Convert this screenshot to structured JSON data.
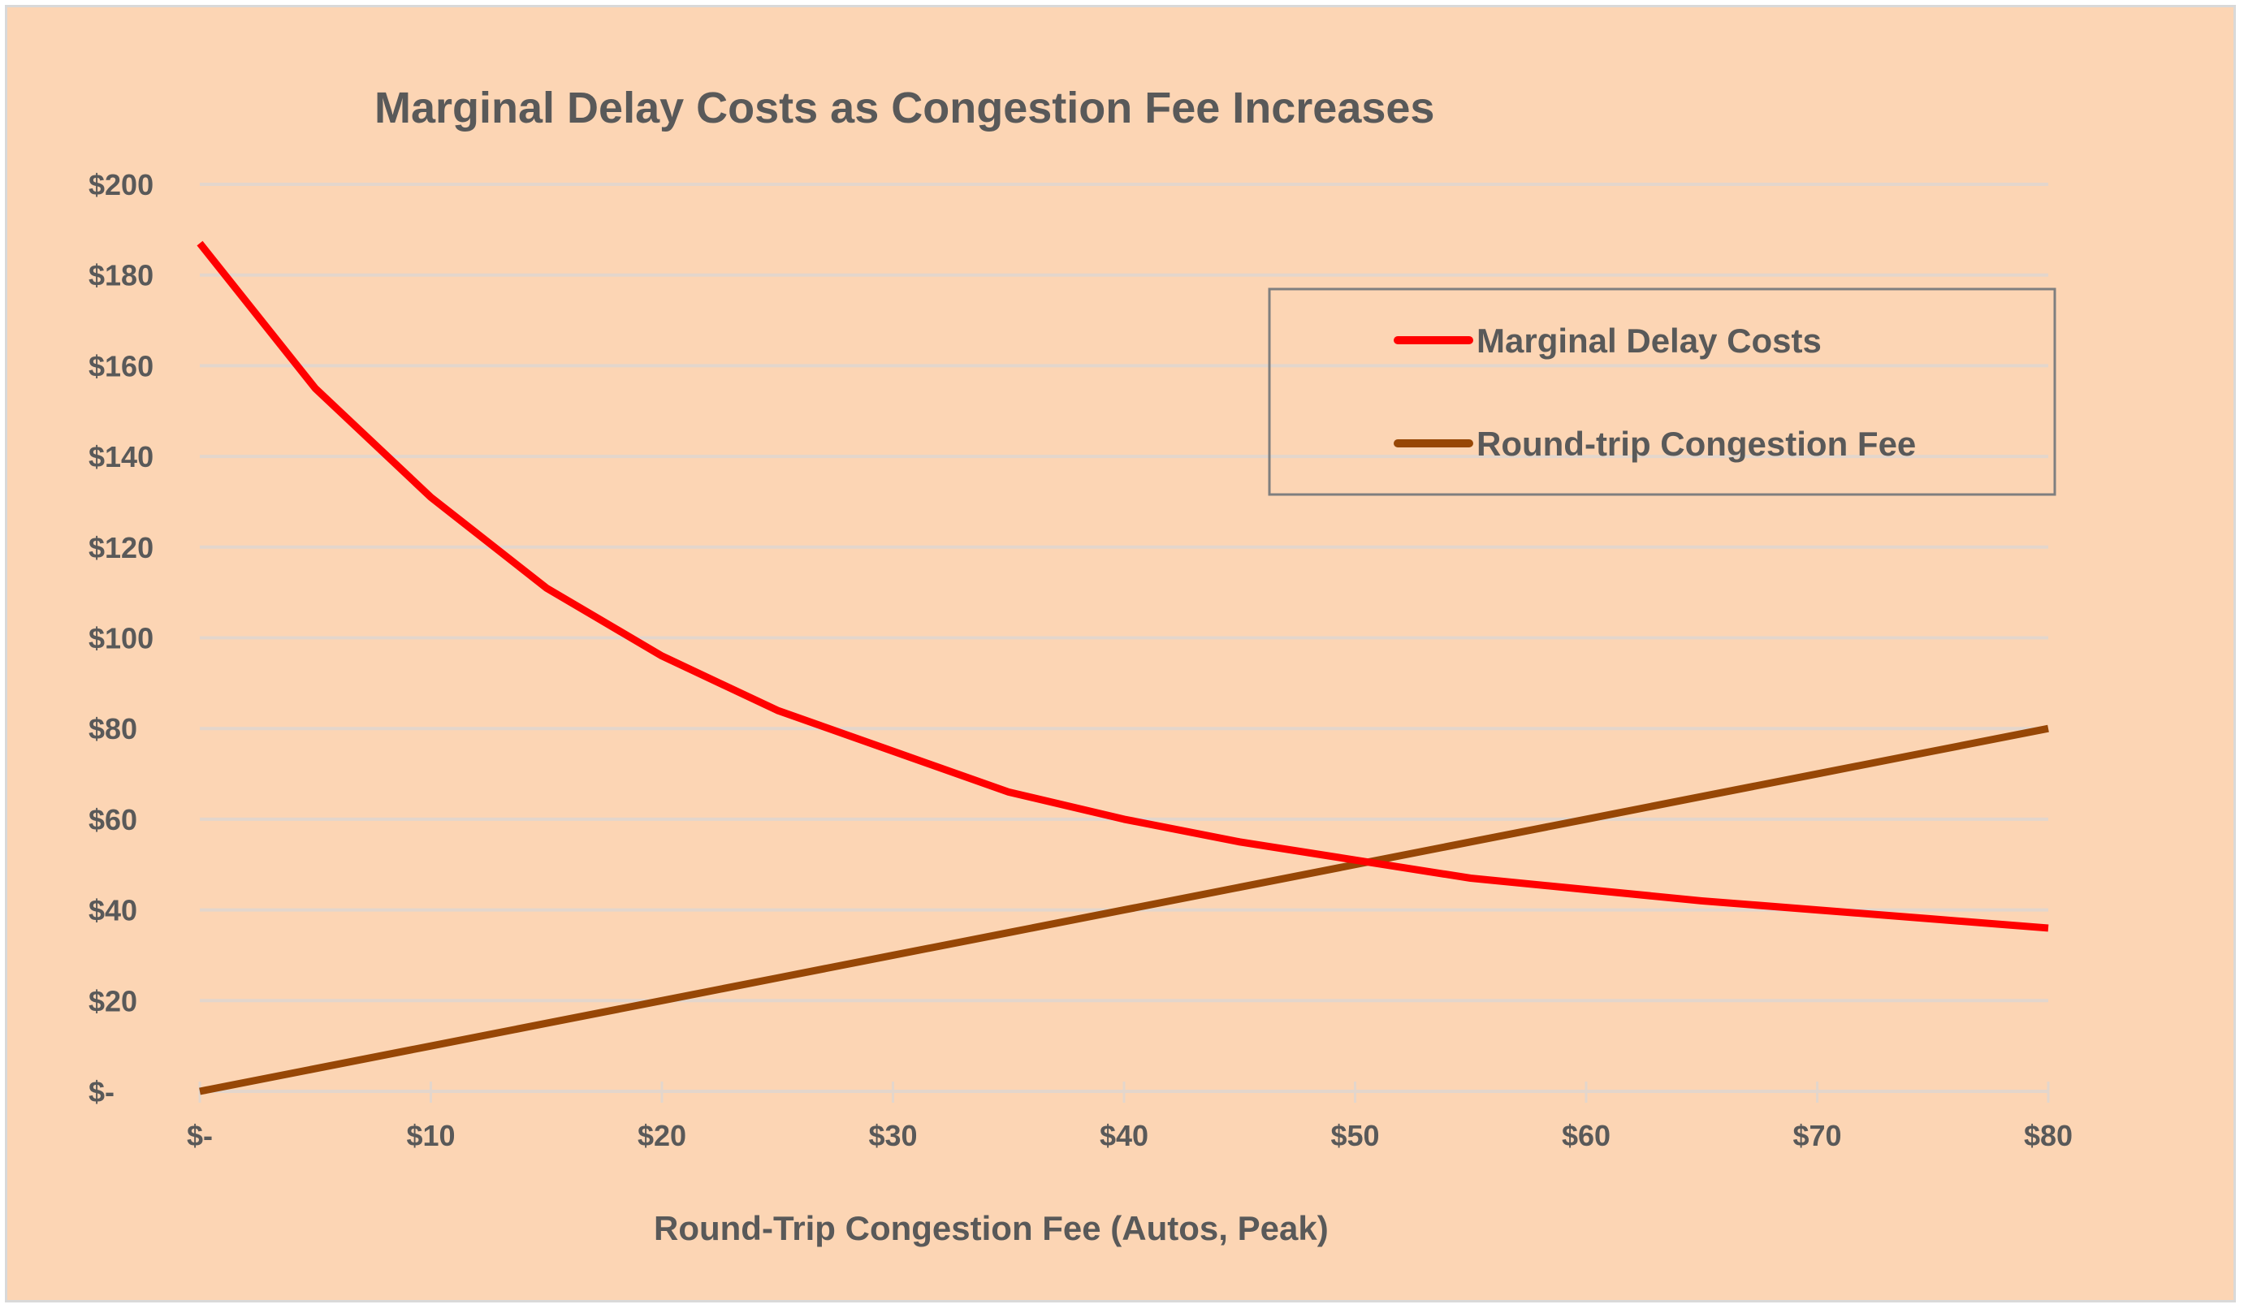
{
  "chart_data": {
    "type": "line",
    "title": "Marginal Delay Costs as Congestion Fee Increases",
    "xlabel": "Round-Trip Congestion Fee (Autos, Peak)",
    "ylabel": "",
    "x": [
      0,
      5,
      10,
      15,
      20,
      25,
      30,
      35,
      40,
      45,
      50,
      55,
      60,
      65,
      70,
      75,
      80
    ],
    "xlim": [
      0,
      80
    ],
    "ylim": [
      0,
      200
    ],
    "x_ticks": [
      0,
      10,
      20,
      30,
      40,
      50,
      60,
      70,
      80
    ],
    "x_tick_labels": [
      "$-",
      "$10",
      "$20",
      "$30",
      "$40",
      "$50",
      "$60",
      "$70",
      "$80"
    ],
    "y_ticks": [
      0,
      20,
      40,
      60,
      80,
      100,
      120,
      140,
      160,
      180,
      200
    ],
    "y_tick_labels": [
      "$-",
      "$20",
      "$40",
      "$60",
      "$80",
      "$100",
      "$120",
      "$140",
      "$160",
      "$180",
      "$200"
    ],
    "grid": "horizontal",
    "legend_position": "top-right",
    "series": [
      {
        "name": "Marginal Delay Costs",
        "color": "#ff0000",
        "values": [
          187,
          155,
          131,
          111,
          96,
          84,
          75,
          66,
          60,
          55,
          51,
          47,
          44.5,
          42,
          40,
          38,
          36
        ]
      },
      {
        "name": "Round-trip Congestion Fee",
        "color": "#974706",
        "values": [
          0,
          5,
          10,
          15,
          20,
          25,
          30,
          35,
          40,
          45,
          50,
          55,
          60,
          65,
          70,
          75,
          80
        ]
      }
    ]
  },
  "colors": {
    "background": "#fcd5b4",
    "gridline": "#e3d6cc",
    "text": "#595959",
    "legend_border": "#7f7f7f"
  }
}
